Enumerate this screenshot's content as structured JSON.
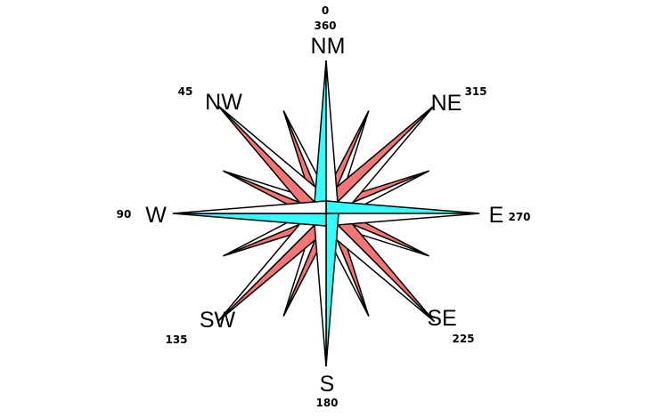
{
  "labels": {
    "north": "NM",
    "northeast": "NE",
    "east": "E",
    "southeast": "SE",
    "south": "S",
    "southwest": "SW",
    "west": "W",
    "northwest": "NW"
  },
  "degrees": {
    "north_top": "0",
    "north_bottom": "360",
    "northeast": "315",
    "east": "270",
    "southeast": "225",
    "south": "180",
    "southwest": "135",
    "west": "90",
    "northwest": "45"
  },
  "colors": {
    "cardinal_fill": "#33ffff",
    "intercardinal_fill": "#f37676",
    "outline": "#000000",
    "background": "#ffffff"
  }
}
